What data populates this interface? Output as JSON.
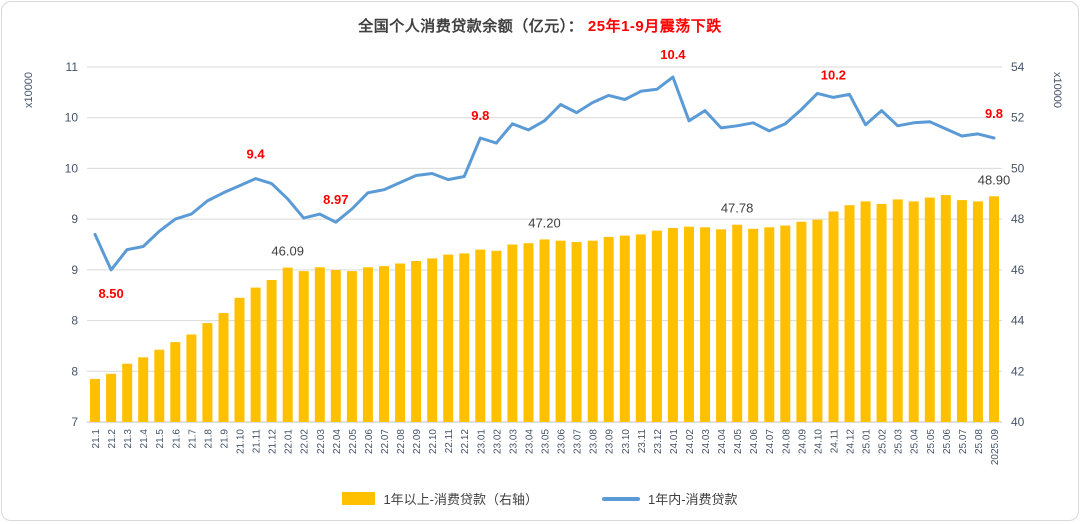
{
  "card": {
    "title_main": "全国个人消费贷款余额（亿元）： ",
    "title_highlight": "25年1-9月震荡下跌",
    "title_main_color": "#404040",
    "title_highlight_color": "#FF0000"
  },
  "legend": [
    {
      "label": "1年以上-消费贷款（右轴）",
      "type": "bar",
      "color": "#FFC000"
    },
    {
      "label": "1年内-消费贷款",
      "type": "line",
      "color": "#5B9BD5"
    }
  ],
  "axes": {
    "left_title": "x10000",
    "right_title": "x10000",
    "left_labels_top_to_bottom": [
      "11",
      "10",
      "10",
      "9",
      "9",
      "8",
      "8",
      "7"
    ],
    "right_labels_top_to_bottom": [
      "54",
      "52",
      "50",
      "48",
      "46",
      "44",
      "42",
      "40"
    ],
    "left_min": 7,
    "left_max": 10.5,
    "right_min": 40,
    "right_max": 54,
    "grid_color": "#d9d9d9",
    "axis_line_color": "#bfbfbf",
    "label_color": "#44546A"
  },
  "chart_data": {
    "type": "combo-bar-line",
    "title": "全国个人消费贷款余额（亿元）：25年1-9月震荡下跌",
    "xlabel": "",
    "ylabel_left": "x10000",
    "ylabel_right": "x10000",
    "left_axis_range": [
      7,
      10.5
    ],
    "right_axis_range": [
      40,
      54
    ],
    "grid": true,
    "legend_position": "bottom",
    "categories": [
      "21.1",
      "21.2",
      "21.3",
      "21.4",
      "21.5",
      "21.6",
      "21.7",
      "21.8",
      "21.9",
      "21.10",
      "21.11",
      "21.12",
      "22.01",
      "22.02",
      "22.03",
      "22.04",
      "22.05",
      "22.06",
      "22.07",
      "22.08",
      "22.09",
      "22.10",
      "22.11",
      "22.12",
      "23.01",
      "23.02",
      "23.03",
      "23.04",
      "23.05",
      "23.06",
      "23.07",
      "23.08",
      "23.09",
      "23.10",
      "23.11",
      "23.12",
      "24.01",
      "24.02",
      "24.03",
      "24.04",
      "24.05",
      "24.06",
      "24.07",
      "24.08",
      "24.09",
      "24.10",
      "24.11",
      "24.12",
      "25.01",
      "25.02",
      "25.03",
      "25.04",
      "25.05",
      "25.06",
      "25.07",
      "25.08",
      "2025.09"
    ],
    "series": [
      {
        "name": "1年以上-消费贷款（右轴）",
        "type": "bar",
        "axis": "right",
        "color": "#FFC000",
        "values": [
          41.7,
          41.9,
          42.3,
          42.55,
          42.85,
          43.15,
          43.45,
          43.9,
          44.3,
          44.9,
          45.3,
          45.6,
          46.09,
          45.95,
          46.1,
          46.0,
          45.95,
          46.1,
          46.15,
          46.25,
          46.35,
          46.45,
          46.6,
          46.65,
          46.8,
          46.75,
          47.0,
          47.05,
          47.2,
          47.15,
          47.1,
          47.15,
          47.3,
          47.35,
          47.4,
          47.55,
          47.65,
          47.7,
          47.68,
          47.6,
          47.78,
          47.62,
          47.68,
          47.75,
          47.9,
          47.98,
          48.3,
          48.55,
          48.7,
          48.6,
          48.78,
          48.7,
          48.85,
          48.95,
          48.75,
          48.7,
          48.9
        ]
      },
      {
        "name": "1年内-消费贷款",
        "type": "line",
        "axis": "left",
        "color": "#5B9BD5",
        "values": [
          8.85,
          8.5,
          8.7,
          8.73,
          8.88,
          9.0,
          9.05,
          9.18,
          9.26,
          9.33,
          9.4,
          9.35,
          9.2,
          9.01,
          9.05,
          8.97,
          9.1,
          9.26,
          9.29,
          9.36,
          9.43,
          9.45,
          9.39,
          9.42,
          9.8,
          9.75,
          9.94,
          9.88,
          9.97,
          10.13,
          10.05,
          10.15,
          10.22,
          10.18,
          10.26,
          10.28,
          10.4,
          9.97,
          10.07,
          9.9,
          9.92,
          9.95,
          9.87,
          9.94,
          10.08,
          10.24,
          10.2,
          10.23,
          9.93,
          10.07,
          9.92,
          9.95,
          9.96,
          9.89,
          9.82,
          9.84,
          9.8
        ]
      }
    ],
    "annotations": [
      {
        "series": "line",
        "category": "21.2",
        "text": "8.50",
        "color": "#FF0000",
        "dy": 28
      },
      {
        "series": "line",
        "category": "21.11",
        "text": "9.4",
        "color": "#FF0000",
        "dy": -20
      },
      {
        "series": "line",
        "category": "22.04",
        "text": "8.97",
        "color": "#FF0000",
        "dy": -18
      },
      {
        "series": "line",
        "category": "23.01",
        "text": "9.8",
        "color": "#FF0000",
        "dy": -18
      },
      {
        "series": "line",
        "category": "24.01",
        "text": "10.4",
        "color": "#FF0000",
        "dy": -18
      },
      {
        "series": "line",
        "category": "24.11",
        "text": "10.2",
        "color": "#FF0000",
        "dy": -18
      },
      {
        "series": "line",
        "category": "2025.09",
        "text": "9.8",
        "color": "#FF0000",
        "dy": -20
      },
      {
        "series": "bar",
        "category": "22.01",
        "text": "46.09",
        "color": "#404040",
        "dy": -12
      },
      {
        "series": "bar",
        "category": "23.05",
        "text": "47.20",
        "color": "#404040",
        "dy": -12
      },
      {
        "series": "bar",
        "category": "24.05",
        "text": "47.78",
        "color": "#404040",
        "dy": -12
      },
      {
        "series": "bar",
        "category": "2025.09",
        "text": "48.90",
        "color": "#404040",
        "dy": -12
      }
    ]
  }
}
